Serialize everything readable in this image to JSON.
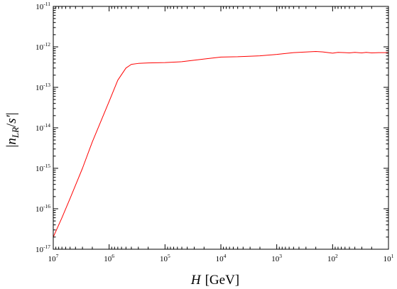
{
  "chart_data": {
    "type": "line",
    "title": "",
    "xlabel": {
      "var": "H",
      "unit": "[GeV]"
    },
    "ylabel": {
      "pre": "|",
      "var": "n",
      "sub": "LR",
      "slash": "/",
      "var2": "s′",
      "post": "|"
    },
    "x_scale": "log",
    "y_scale": "log",
    "x_reversed": true,
    "xlim": [
      10000000,
      10
    ],
    "ylim": [
      1e-17,
      1e-11
    ],
    "x_ticks": [
      {
        "value": 10000000,
        "base": "10",
        "exp": "7"
      },
      {
        "value": 1000000,
        "base": "10",
        "exp": "6"
      },
      {
        "value": 100000,
        "base": "10",
        "exp": "5"
      },
      {
        "value": 10000,
        "base": "10",
        "exp": "4"
      },
      {
        "value": 1000,
        "base": "10",
        "exp": "3"
      },
      {
        "value": 100,
        "base": "10",
        "exp": "2"
      },
      {
        "value": 10,
        "base": "10",
        "exp": "1"
      }
    ],
    "y_ticks": [
      {
        "value": 1e-11,
        "base": "10",
        "exp": "-11"
      },
      {
        "value": 1e-12,
        "base": "10",
        "exp": "-12"
      },
      {
        "value": 1e-13,
        "base": "10",
        "exp": "-13"
      },
      {
        "value": 1e-14,
        "base": "10",
        "exp": "-14"
      },
      {
        "value": 1e-15,
        "base": "10",
        "exp": "-15"
      },
      {
        "value": 1e-16,
        "base": "10",
        "exp": "-16"
      },
      {
        "value": 1e-17,
        "base": "10",
        "exp": "-17"
      }
    ],
    "grid": false,
    "series": [
      {
        "color": "#ff0000",
        "points": [
          [
            10000000,
            2e-17
          ],
          [
            7000000,
            6e-17
          ],
          [
            5000000,
            1.8e-16
          ],
          [
            3000000,
            1e-15
          ],
          [
            2000000,
            4.5e-15
          ],
          [
            1000000,
            4.5e-14
          ],
          [
            700000,
            1.5e-13
          ],
          [
            500000,
            3e-13
          ],
          [
            400000,
            3.7e-13
          ],
          [
            300000,
            3.9e-13
          ],
          [
            200000,
            4e-13
          ],
          [
            100000,
            4.1e-13
          ],
          [
            50000,
            4.3e-13
          ],
          [
            20000,
            5e-13
          ],
          [
            10000,
            5.6e-13
          ],
          [
            5000,
            5.7e-13
          ],
          [
            2000,
            6e-13
          ],
          [
            1000,
            6.5e-13
          ],
          [
            500,
            7.2e-13
          ],
          [
            200,
            7.7e-13
          ],
          [
            150,
            7.5e-13
          ],
          [
            100,
            7e-13
          ],
          [
            80,
            7.3e-13
          ],
          [
            60,
            7.2e-13
          ],
          [
            50,
            7.1e-13
          ],
          [
            40,
            7.3e-13
          ],
          [
            30,
            7.1e-13
          ],
          [
            25,
            7.3e-13
          ],
          [
            20,
            7.1e-13
          ],
          [
            15,
            7.2e-13
          ],
          [
            10,
            7.2e-13
          ]
        ]
      }
    ]
  }
}
